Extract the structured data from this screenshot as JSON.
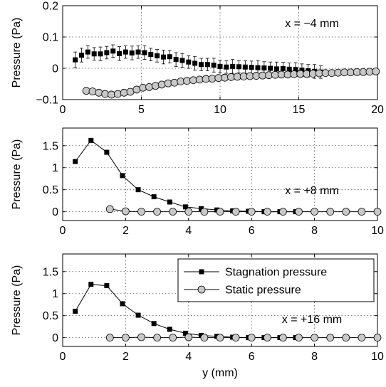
{
  "chart_data": [
    {
      "type": "scatter",
      "ylabel": "Pressure (Pa)",
      "xlabel": "",
      "xlim": [
        0,
        20
      ],
      "ylim": [
        -0.1,
        0.2
      ],
      "xticks": [
        "0",
        "5",
        "10",
        "15",
        "20"
      ],
      "yticks": [
        "−0.1",
        "0",
        "0.1",
        "0.2"
      ],
      "grid": true,
      "annotation": "x = −4 mm",
      "series": [
        {
          "key": "stagnation",
          "marker": "square",
          "line": false,
          "x": [
            0.8,
            1.2,
            1.6,
            2.0,
            2.4,
            2.8,
            3.2,
            3.6,
            4.0,
            4.4,
            4.8,
            5.2,
            5.6,
            6.0,
            6.4,
            6.8,
            7.2,
            7.6,
            8.0,
            8.4,
            8.8,
            9.2,
            9.6,
            10.0,
            10.4,
            10.8,
            11.2,
            11.6,
            12.0,
            12.4,
            12.8,
            13.2,
            13.6,
            14.0,
            14.4,
            14.8,
            15.2,
            15.6,
            16.0,
            16.4
          ],
          "y": [
            0.027,
            0.042,
            0.052,
            0.046,
            0.046,
            0.05,
            0.055,
            0.047,
            0.052,
            0.049,
            0.052,
            0.05,
            0.044,
            0.04,
            0.036,
            0.037,
            0.028,
            0.025,
            0.02,
            0.016,
            0.012,
            0.012,
            0.01,
            0.006,
            0.004,
            0.006,
            0.005,
            0.004,
            0.003,
            0.002,
            0.001,
            0.0,
            -0.002,
            -0.001,
            -0.003,
            -0.004,
            -0.006,
            -0.008,
            -0.01,
            -0.012
          ],
          "err": [
            0.025,
            0.022,
            0.02,
            0.02,
            0.022,
            0.02,
            0.02,
            0.022,
            0.02,
            0.022,
            0.02,
            0.022,
            0.02,
            0.02,
            0.022,
            0.02,
            0.022,
            0.022,
            0.02,
            0.022,
            0.02,
            0.02,
            0.022,
            0.02,
            0.02,
            0.022,
            0.02,
            0.02,
            0.02,
            0.022,
            0.02,
            0.02,
            0.022,
            0.02,
            0.02,
            0.022,
            0.02,
            0.02,
            0.022,
            0.02
          ]
        },
        {
          "key": "static",
          "marker": "circle",
          "line": false,
          "x": [
            1.5,
            1.9,
            2.3,
            2.7,
            3.1,
            3.5,
            3.9,
            4.3,
            4.7,
            5.1,
            5.5,
            5.9,
            6.3,
            6.7,
            7.1,
            7.5,
            7.9,
            8.3,
            8.7,
            9.1,
            9.5,
            9.9,
            10.3,
            10.7,
            11.1,
            11.5,
            11.9,
            12.3,
            12.7,
            13.1,
            13.5,
            13.9,
            14.3,
            14.7,
            15.1,
            15.5,
            15.9,
            16.3,
            16.7,
            17.1,
            17.5,
            17.9,
            18.3,
            18.7,
            19.1,
            19.5,
            19.9
          ],
          "y": [
            -0.072,
            -0.074,
            -0.078,
            -0.082,
            -0.084,
            -0.082,
            -0.078,
            -0.075,
            -0.068,
            -0.062,
            -0.06,
            -0.056,
            -0.052,
            -0.048,
            -0.046,
            -0.042,
            -0.04,
            -0.038,
            -0.036,
            -0.034,
            -0.033,
            -0.031,
            -0.03,
            -0.028,
            -0.027,
            -0.026,
            -0.025,
            -0.024,
            -0.023,
            -0.022,
            -0.021,
            -0.02,
            -0.02,
            -0.019,
            -0.018,
            -0.018,
            -0.017,
            -0.016,
            -0.015,
            -0.015,
            -0.014,
            -0.013,
            -0.013,
            -0.012,
            -0.012,
            -0.011,
            -0.01
          ]
        }
      ]
    },
    {
      "type": "line",
      "ylabel": "Pressure (Pa)",
      "xlabel": "",
      "xlim": [
        0,
        10
      ],
      "ylim": [
        -0.2,
        1.9
      ],
      "xticks": [
        "0",
        "2",
        "4",
        "6",
        "8",
        "10"
      ],
      "yticks": [
        "0",
        "0.5",
        "1",
        "1.5"
      ],
      "grid": true,
      "annotation": "x = +8 mm",
      "series": [
        {
          "key": "stagnation",
          "marker": "square",
          "line": true,
          "x": [
            0.4,
            0.9,
            1.4,
            1.9,
            2.4,
            2.9,
            3.4,
            3.9,
            4.4,
            4.9,
            5.4,
            5.9,
            6.4,
            6.9,
            7.4
          ],
          "y": [
            1.14,
            1.62,
            1.35,
            0.82,
            0.5,
            0.34,
            0.22,
            0.11,
            0.07,
            0.04,
            0.02,
            0.01,
            0.0,
            0.0,
            0.0
          ]
        },
        {
          "key": "static",
          "marker": "circle",
          "line": true,
          "x": [
            1.5,
            2.0,
            2.5,
            3.0,
            3.5,
            4.0,
            4.5,
            5.0,
            5.5,
            6.0,
            6.5,
            7.0,
            7.5,
            8.0,
            8.5,
            9.0,
            9.5,
            10.0
          ],
          "y": [
            0.06,
            0.01,
            0.0,
            0.0,
            0.0,
            0.0,
            0.0,
            0.0,
            0.0,
            0.0,
            0.0,
            0.0,
            0.0,
            0.0,
            0.0,
            0.0,
            0.0,
            0.0
          ]
        }
      ]
    },
    {
      "type": "line",
      "ylabel": "Pressure (Pa)",
      "xlabel": "y (mm)",
      "xlim": [
        0,
        10
      ],
      "ylim": [
        -0.2,
        1.9
      ],
      "xticks": [
        "0",
        "2",
        "4",
        "6",
        "8",
        "10"
      ],
      "yticks": [
        "0",
        "0.5",
        "1",
        "1.5"
      ],
      "grid": true,
      "annotation": "x = +16 mm",
      "legend": {
        "position": "top-right",
        "entries": [
          "Stagnation pressure",
          "Static pressure"
        ]
      },
      "series": [
        {
          "key": "stagnation",
          "name": "Stagnation pressure",
          "marker": "square",
          "line": true,
          "x": [
            0.4,
            0.9,
            1.4,
            1.9,
            2.4,
            2.9,
            3.4,
            3.9,
            4.4,
            4.9,
            5.4,
            5.9,
            6.4,
            6.9,
            7.4
          ],
          "y": [
            0.6,
            1.21,
            1.18,
            0.77,
            0.51,
            0.32,
            0.19,
            0.1,
            0.05,
            0.03,
            0.01,
            0.0,
            0.0,
            0.0,
            0.0
          ]
        },
        {
          "key": "static",
          "name": "Static pressure",
          "marker": "circle",
          "line": true,
          "x": [
            1.5,
            2.0,
            2.5,
            3.0,
            3.5,
            4.0,
            4.5,
            5.0,
            5.5,
            6.0,
            6.5,
            7.0,
            7.5,
            8.0,
            8.5,
            9.0,
            9.5,
            10.0
          ],
          "y": [
            0.0,
            0.0,
            0.01,
            0.0,
            0.0,
            0.01,
            0.0,
            0.0,
            0.0,
            0.0,
            0.0,
            0.0,
            0.0,
            0.0,
            0.0,
            0.0,
            0.0,
            0.0
          ]
        }
      ]
    }
  ]
}
